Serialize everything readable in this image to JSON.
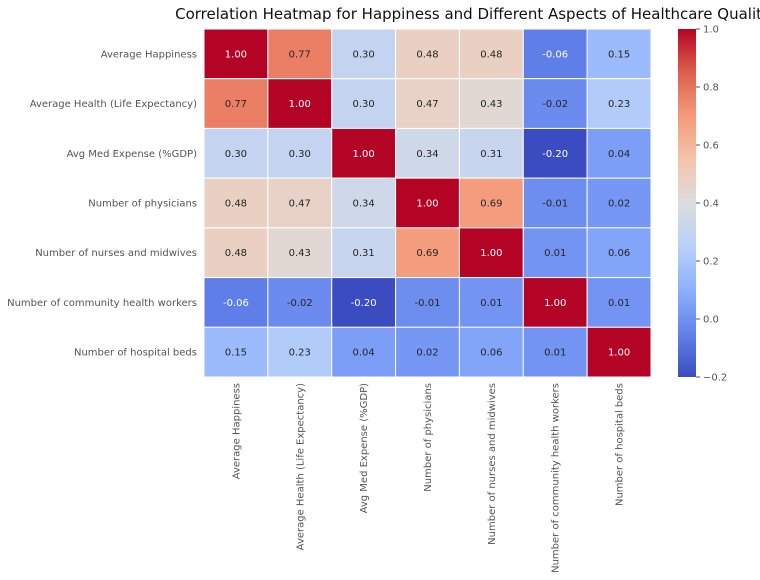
{
  "chart_data": {
    "type": "heatmap",
    "title": "Correlation Heatmap for Happiness and Different Aspects of Healthcare Quality",
    "xlabel": "",
    "ylabel": "",
    "row_labels": [
      "Average Happiness",
      "Average Health (Life Expectancy)",
      "Avg Med Expense (%GDP)",
      "Number of physicians",
      "Number of nurses and midwives",
      "Number of community health workers",
      "Number of hospital beds"
    ],
    "col_labels": [
      "Average Happiness",
      "Average Health (Life Expectancy)",
      "Avg Med Expense (%GDP)",
      "Number of physicians",
      "Number of nurses and midwives",
      "Number of community health workers",
      "Number of hospital beds"
    ],
    "values": [
      [
        1.0,
        0.77,
        0.3,
        0.48,
        0.48,
        -0.06,
        0.15
      ],
      [
        0.77,
        1.0,
        0.3,
        0.47,
        0.43,
        -0.02,
        0.23
      ],
      [
        0.3,
        0.3,
        1.0,
        0.34,
        0.31,
        -0.2,
        0.04
      ],
      [
        0.48,
        0.47,
        0.34,
        1.0,
        0.69,
        -0.01,
        0.02
      ],
      [
        0.48,
        0.43,
        0.31,
        0.69,
        1.0,
        0.01,
        0.06
      ],
      [
        -0.06,
        -0.02,
        -0.2,
        -0.01,
        0.01,
        1.0,
        0.01
      ],
      [
        0.15,
        0.23,
        0.04,
        0.02,
        0.06,
        0.01,
        1.0
      ]
    ],
    "value_format": "0.00",
    "colormap": "coolwarm",
    "vmin": -0.2,
    "vmax": 1.0,
    "colorbar_ticks": [
      "1.0",
      "0.8",
      "0.6",
      "0.4",
      "0.2",
      "0.0",
      "−0.2"
    ],
    "grid": false,
    "cell_border_color": "#ffffff"
  }
}
